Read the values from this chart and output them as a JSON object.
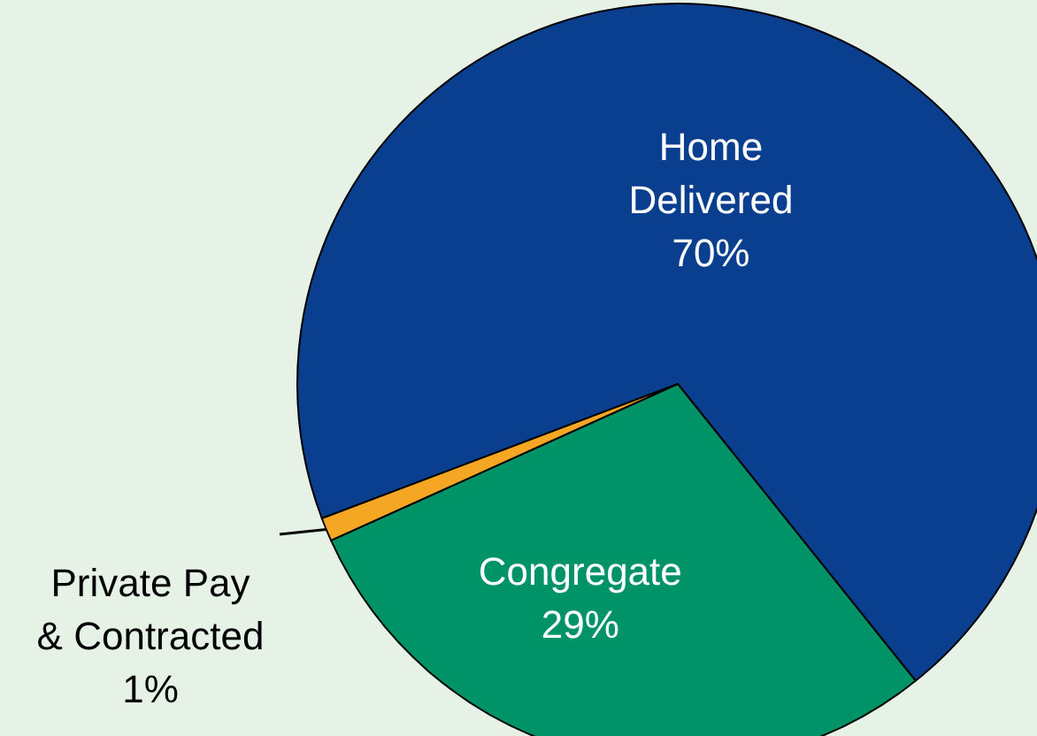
{
  "chart_data": {
    "type": "pie",
    "categories": [
      "Home Delivered",
      "Congregate",
      "Private Pay & Contracted"
    ],
    "values": [
      70,
      29,
      1
    ],
    "colors": [
      "#0a3f8f",
      "#009368",
      "#f5a623"
    ],
    "value_labels": [
      "70%",
      "29%",
      "1%"
    ]
  }
}
